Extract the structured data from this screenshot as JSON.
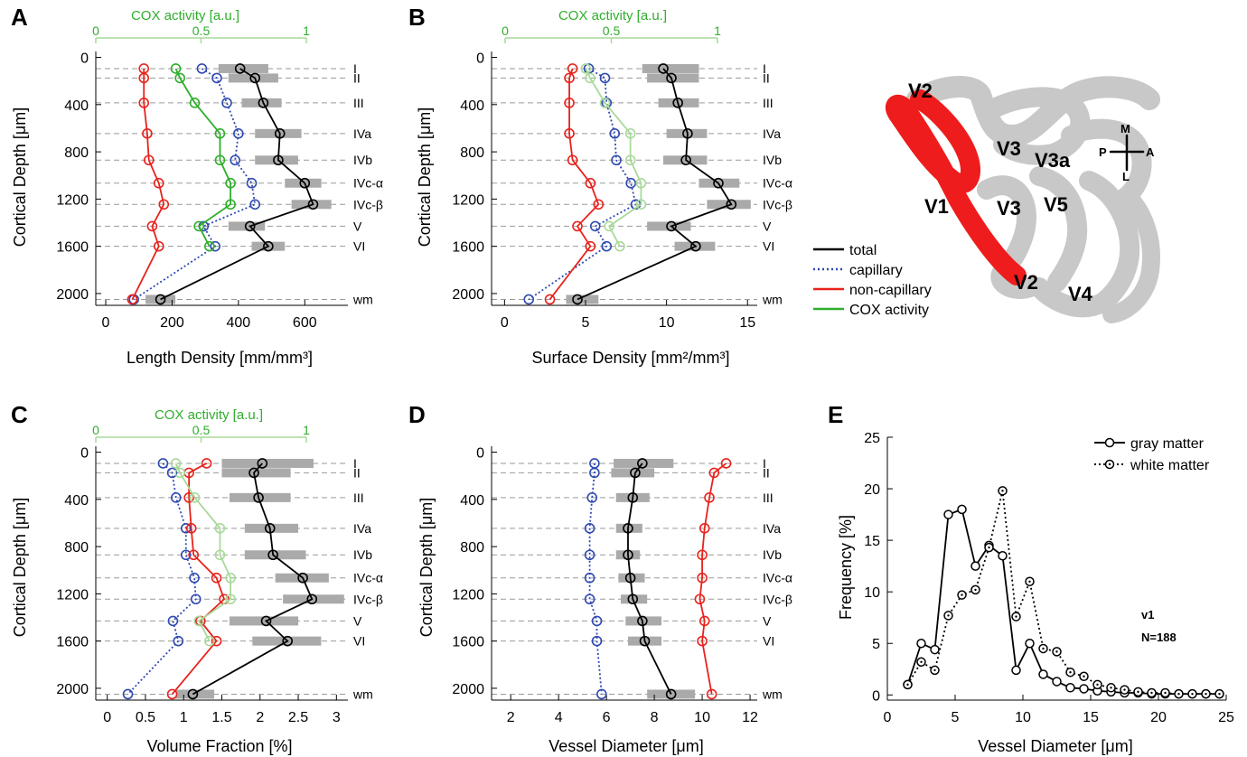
{
  "layer_labels": [
    "I",
    "II",
    "III",
    "IVa",
    "IVb",
    "IVc-α",
    "IVc-β",
    "V",
    "VI",
    "wm"
  ],
  "layer_depths": [
    95,
    175,
    385,
    645,
    870,
    1065,
    1245,
    1430,
    1600,
    2050
  ],
  "colors": {
    "total": "#000000",
    "capillary": "#2f49b0",
    "noncap": "#e8221c",
    "cox": "#2fae2c",
    "cox_light": "#a9d99a",
    "shade": "#aaaaaa",
    "grid": "#9a9a9a",
    "region_gray": "#c8c8c8",
    "region_red": "#ee1c1c"
  },
  "legend": {
    "total": "total",
    "capillary": "capillary",
    "noncap": "non-capillary",
    "cox": "COX activity"
  },
  "map": {
    "labels": {
      "v2_top": "V2",
      "v3_top": "V3",
      "v3a": "V3a",
      "v1": "V1",
      "v3_bottom": "V3",
      "v5": "V5",
      "v2_bottom": "V2",
      "v4": "V4"
    },
    "compass": {
      "m": "M",
      "p": "P",
      "a": "A",
      "l": "L"
    }
  },
  "chart_data": [
    {
      "panel": "A",
      "type": "line",
      "orientation": "vertical-depth",
      "ylabel": "Cortical Depth [μm]",
      "xlabel": "Length Density [mm/mm³]",
      "xticks": [
        0,
        200,
        400,
        600
      ],
      "xlim": [
        -30,
        730
      ],
      "yticks": [
        0,
        400,
        800,
        1200,
        1600,
        2000
      ],
      "ylim": [
        2100,
        -50
      ],
      "top_axis": {
        "label": "COX activity [a.u.]",
        "ticks": [
          "0",
          "0.5",
          "1"
        ],
        "tick_values": [
          0,
          0.5,
          1
        ],
        "range": [
          0,
          1
        ]
      },
      "series": [
        {
          "key": "total",
          "values": [
            405,
            450,
            475,
            525,
            520,
            600,
            625,
            435,
            490,
            165
          ],
          "spread": [
            [
              340,
              490
            ],
            [
              370,
              520
            ],
            [
              410,
              530
            ],
            [
              450,
              590
            ],
            [
              450,
              580
            ],
            [
              540,
              650
            ],
            [
              560,
              680
            ],
            [
              370,
              480
            ],
            [
              440,
              540
            ],
            [
              120,
              210
            ]
          ]
        },
        {
          "key": "capillary",
          "values": [
            290,
            335,
            365,
            400,
            390,
            440,
            450,
            295,
            330,
            85
          ]
        },
        {
          "key": "noncap",
          "values": [
            115,
            115,
            115,
            125,
            130,
            160,
            175,
            140,
            160,
            80
          ]
        },
        {
          "key": "cox",
          "cox_values": [
            0.38,
            0.4,
            0.47,
            0.59,
            0.59,
            0.64,
            0.64,
            0.49,
            0.54
          ]
        }
      ]
    },
    {
      "panel": "B",
      "type": "line",
      "orientation": "vertical-depth",
      "ylabel": "Cortical Depth [μm]",
      "xlabel": "Surface Density [mm²/mm³]",
      "xticks": [
        0,
        5,
        10,
        15
      ],
      "xlim": [
        -0.8,
        15.6
      ],
      "yticks": [
        0,
        400,
        800,
        1200,
        1600,
        2000
      ],
      "ylim": [
        2100,
        -50
      ],
      "top_axis": {
        "label": "COX activity [a.u.]",
        "ticks": [
          "0",
          "0.5",
          "1"
        ],
        "tick_values": [
          0,
          0.5,
          1
        ],
        "range": [
          0,
          1
        ]
      },
      "series": [
        {
          "key": "total",
          "values": [
            9.8,
            10.3,
            10.7,
            11.3,
            11.2,
            13.2,
            14.0,
            10.3,
            11.8,
            4.5
          ],
          "spread": [
            [
              8.5,
              12.0
            ],
            [
              8.8,
              12.0
            ],
            [
              9.5,
              12.0
            ],
            [
              10.0,
              12.5
            ],
            [
              9.8,
              12.5
            ],
            [
              12.0,
              14.5
            ],
            [
              12.5,
              15.2
            ],
            [
              8.8,
              11.5
            ],
            [
              10.5,
              13.0
            ],
            [
              3.8,
              5.8
            ]
          ]
        },
        {
          "key": "capillary",
          "values": [
            5.2,
            6.2,
            6.3,
            6.8,
            6.9,
            7.8,
            8.1,
            5.6,
            6.3,
            1.5
          ]
        },
        {
          "key": "noncap",
          "values": [
            4.2,
            4.0,
            4.0,
            4.0,
            4.2,
            5.3,
            5.8,
            4.5,
            5.3,
            2.8
          ]
        },
        {
          "key": "cox_light",
          "cox_values": [
            0.38,
            0.4,
            0.47,
            0.59,
            0.59,
            0.64,
            0.64,
            0.49,
            0.54
          ]
        }
      ]
    },
    {
      "panel": "C",
      "type": "line",
      "orientation": "vertical-depth",
      "ylabel": "Cortical Depth [μm]",
      "xlabel": "Volume Fraction [%]",
      "xticks": [
        0,
        0.5,
        1,
        1.5,
        2,
        2.5,
        3
      ],
      "xlim": [
        -0.15,
        3.15
      ],
      "yticks": [
        0,
        400,
        800,
        1200,
        1600,
        2000
      ],
      "ylim": [
        2100,
        -50
      ],
      "top_axis": {
        "label": "COX activity [a.u.]",
        "ticks": [
          "0",
          "0.5",
          "1"
        ],
        "tick_values": [
          0,
          0.5,
          1
        ],
        "range": [
          0,
          1
        ]
      },
      "series": [
        {
          "key": "total",
          "values": [
            2.03,
            1.92,
            1.98,
            2.13,
            2.17,
            2.56,
            2.68,
            2.08,
            2.36,
            1.12
          ],
          "spread": [
            [
              1.5,
              2.7
            ],
            [
              1.5,
              2.4
            ],
            [
              1.6,
              2.4
            ],
            [
              1.8,
              2.5
            ],
            [
              1.8,
              2.6
            ],
            [
              2.2,
              2.9
            ],
            [
              2.3,
              3.1
            ],
            [
              1.6,
              2.5
            ],
            [
              1.9,
              2.8
            ],
            [
              0.9,
              1.4
            ]
          ]
        },
        {
          "key": "capillary",
          "values": [
            0.73,
            0.85,
            0.9,
            1.03,
            1.03,
            1.14,
            1.16,
            0.86,
            0.93,
            0.27
          ]
        },
        {
          "key": "noncap",
          "values": [
            1.3,
            1.07,
            1.07,
            1.1,
            1.13,
            1.43,
            1.53,
            1.22,
            1.43,
            0.85
          ]
        },
        {
          "key": "cox_light",
          "cox_values": [
            0.38,
            0.4,
            0.47,
            0.59,
            0.59,
            0.64,
            0.64,
            0.49,
            0.54
          ]
        }
      ]
    },
    {
      "panel": "D",
      "type": "line",
      "orientation": "vertical-depth",
      "ylabel": "Cortical Depth [μm]",
      "xlabel": "Vessel Diameter [μm]",
      "xticks": [
        2,
        4,
        6,
        8,
        10,
        12
      ],
      "xlim": [
        1.2,
        12.3
      ],
      "yticks": [
        0,
        400,
        800,
        1200,
        1600,
        2000
      ],
      "ylim": [
        2100,
        -50
      ],
      "series": [
        {
          "key": "total",
          "values": [
            7.5,
            7.2,
            7.1,
            6.9,
            6.9,
            7.0,
            7.1,
            7.5,
            7.6,
            8.7
          ],
          "spread": [
            [
              6.3,
              8.8
            ],
            [
              6.2,
              8.0
            ],
            [
              6.4,
              7.8
            ],
            [
              6.4,
              7.5
            ],
            [
              6.4,
              7.4
            ],
            [
              6.5,
              7.6
            ],
            [
              6.6,
              7.7
            ],
            [
              6.8,
              8.3
            ],
            [
              6.9,
              8.3
            ],
            [
              7.7,
              9.7
            ]
          ]
        },
        {
          "key": "capillary",
          "values": [
            5.5,
            5.5,
            5.4,
            5.3,
            5.3,
            5.3,
            5.3,
            5.6,
            5.6,
            5.8
          ]
        },
        {
          "key": "noncap",
          "values": [
            11.0,
            10.5,
            10.3,
            10.1,
            10.0,
            10.0,
            9.9,
            10.1,
            10.0,
            10.4
          ]
        }
      ]
    },
    {
      "panel": "E",
      "type": "line",
      "ylabel": "Frequency [%]",
      "xlabel": "Vessel Diameter [μm]",
      "xticks": [
        0,
        5,
        10,
        15,
        20,
        25
      ],
      "xlim": [
        0,
        25
      ],
      "yticks": [
        0,
        5,
        10,
        15,
        20,
        25
      ],
      "ylim": [
        -0.5,
        25
      ],
      "annotations": [
        "v1",
        "N=188"
      ],
      "x": [
        1.5,
        2.5,
        3.5,
        4.5,
        5.5,
        6.5,
        7.5,
        8.5,
        9.5,
        10.5,
        11.5,
        12.5,
        13.5,
        14.5,
        15.5,
        16.5,
        17.5,
        18.5,
        19.5,
        20.5,
        21.5,
        22.5,
        23.5,
        24.5
      ],
      "series": [
        {
          "name": "gray matter",
          "style": "solid",
          "values": [
            1.0,
            5.0,
            4.4,
            17.5,
            18.0,
            12.5,
            14.5,
            13.5,
            2.4,
            5.0,
            2.0,
            1.3,
            0.7,
            0.6,
            0.4,
            0.3,
            0.2,
            0.2,
            0.1,
            0.1,
            0.1,
            0.1,
            0.1,
            0.1
          ]
        },
        {
          "name": "white matter",
          "style": "dotted",
          "values": [
            1.0,
            3.2,
            2.4,
            7.7,
            9.7,
            10.2,
            14.3,
            19.8,
            7.6,
            11.0,
            4.5,
            4.2,
            2.2,
            1.8,
            1.0,
            0.7,
            0.5,
            0.3,
            0.2,
            0.2,
            0.1,
            0.1,
            0.1,
            0.1
          ]
        }
      ]
    }
  ]
}
